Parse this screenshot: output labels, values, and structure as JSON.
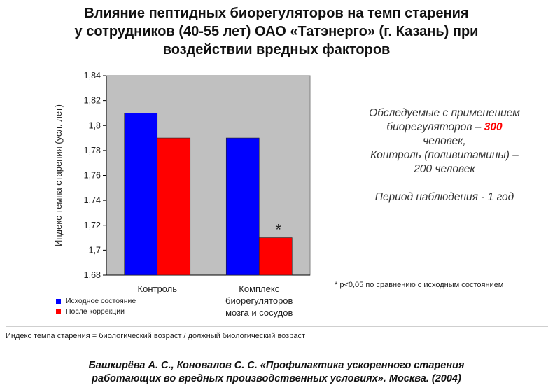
{
  "title_lines": [
    "Влияние пептидных биорегуляторов на темп старения",
    "у сотрудников (40-55 лет) ОАО «Татэнерго» (г. Казань) при",
    "воздействии вредных факторов"
  ],
  "chart_data": {
    "type": "bar",
    "categories": [
      [
        "Контроль"
      ],
      [
        "Комплекс",
        "биорегуляторов",
        "мозга и сосудов"
      ]
    ],
    "series": [
      {
        "name": "Исходное состояние",
        "color": "#0000ff",
        "values": [
          1.81,
          1.79
        ]
      },
      {
        "name": "После коррекции",
        "color": "#ff0000",
        "values": [
          1.79,
          1.71
        ]
      }
    ],
    "ylabel": "Индекс темпа старения (усл. лет)",
    "ylim": [
      1.68,
      1.84
    ],
    "yticks": [
      "1,68",
      "1,7",
      "1,72",
      "1,74",
      "1,76",
      "1,78",
      "1,8",
      "1,82",
      "1,84"
    ],
    "grid": false,
    "plot_background": "#c0c0c0",
    "annotation": {
      "text": "*",
      "category_index": 1,
      "series_index": 1
    }
  },
  "info": {
    "line1": "Обследуемые с применением",
    "line2_prefix": "биорегуляторов – ",
    "line2_number": "300",
    "line3": "человек,",
    "line4": "Контроль (поливитамины) –",
    "line5": "200 человек",
    "line6": "Период наблюдения -  1 год"
  },
  "footnote": "* р<0,05 по сравнению с исходным состоянием",
  "definition": "Индекс темпа старения = биологический возраст / должный биологический возраст",
  "citation_lines": [
    "Башкирёва А. С., Коновалов С. С. «Профилактика ускоренного старения",
    "работающих во вредных производственных условиях». Москва. (2004)"
  ]
}
